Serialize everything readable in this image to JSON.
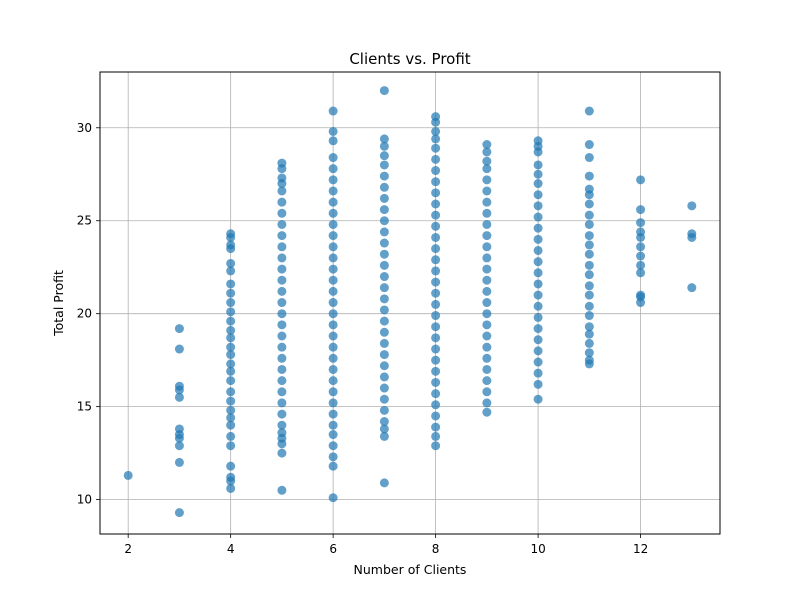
{
  "chart_data": {
    "type": "scatter",
    "title": "Clients vs. Profit",
    "xlabel": "Number of Clients",
    "ylabel": "Total Profit",
    "xlim": [
      1.45,
      13.55
    ],
    "ylim": [
      8.15,
      33.0
    ],
    "xticks": [
      2,
      4,
      6,
      8,
      10,
      12
    ],
    "yticks": [
      10,
      15,
      20,
      25,
      30
    ],
    "grid": true,
    "point_color": "#1f77b4",
    "point_alpha": 0.7,
    "series": [
      {
        "points": [
          [
            2,
            11.3
          ],
          [
            3,
            9.3
          ],
          [
            3,
            12.0
          ],
          [
            3,
            12.9
          ],
          [
            3,
            13.3
          ],
          [
            3,
            13.5
          ],
          [
            3,
            13.8
          ],
          [
            3,
            15.5
          ],
          [
            3,
            15.9
          ],
          [
            3,
            16.1
          ],
          [
            3,
            18.1
          ],
          [
            3,
            19.2
          ],
          [
            4,
            10.6
          ],
          [
            4,
            11.0
          ],
          [
            4,
            11.2
          ],
          [
            4,
            11.8
          ],
          [
            4,
            12.9
          ],
          [
            4,
            13.4
          ],
          [
            4,
            14.0
          ],
          [
            4,
            14.4
          ],
          [
            4,
            14.8
          ],
          [
            4,
            15.3
          ],
          [
            4,
            15.8
          ],
          [
            4,
            16.4
          ],
          [
            4,
            16.9
          ],
          [
            4,
            17.3
          ],
          [
            4,
            17.8
          ],
          [
            4,
            18.2
          ],
          [
            4,
            18.7
          ],
          [
            4,
            19.1
          ],
          [
            4,
            19.6
          ],
          [
            4,
            20.1
          ],
          [
            4,
            20.6
          ],
          [
            4,
            21.1
          ],
          [
            4,
            21.6
          ],
          [
            4,
            22.3
          ],
          [
            4,
            22.7
          ],
          [
            4,
            23.5
          ],
          [
            4,
            23.7
          ],
          [
            4,
            24.1
          ],
          [
            4,
            24.3
          ],
          [
            5,
            10.5
          ],
          [
            5,
            12.5
          ],
          [
            5,
            13.0
          ],
          [
            5,
            13.3
          ],
          [
            5,
            13.6
          ],
          [
            5,
            14.0
          ],
          [
            5,
            14.6
          ],
          [
            5,
            15.2
          ],
          [
            5,
            15.8
          ],
          [
            5,
            16.4
          ],
          [
            5,
            17.0
          ],
          [
            5,
            17.6
          ],
          [
            5,
            18.2
          ],
          [
            5,
            18.8
          ],
          [
            5,
            19.4
          ],
          [
            5,
            20.0
          ],
          [
            5,
            20.6
          ],
          [
            5,
            21.2
          ],
          [
            5,
            21.8
          ],
          [
            5,
            22.4
          ],
          [
            5,
            23.0
          ],
          [
            5,
            23.6
          ],
          [
            5,
            24.2
          ],
          [
            5,
            24.8
          ],
          [
            5,
            25.4
          ],
          [
            5,
            26.0
          ],
          [
            5,
            26.6
          ],
          [
            5,
            27.0
          ],
          [
            5,
            27.3
          ],
          [
            5,
            27.8
          ],
          [
            5,
            28.1
          ],
          [
            6,
            10.1
          ],
          [
            6,
            11.8
          ],
          [
            6,
            12.3
          ],
          [
            6,
            12.9
          ],
          [
            6,
            13.5
          ],
          [
            6,
            14.0
          ],
          [
            6,
            14.6
          ],
          [
            6,
            15.2
          ],
          [
            6,
            15.8
          ],
          [
            6,
            16.4
          ],
          [
            6,
            17.0
          ],
          [
            6,
            17.6
          ],
          [
            6,
            18.2
          ],
          [
            6,
            18.8
          ],
          [
            6,
            19.4
          ],
          [
            6,
            20.0
          ],
          [
            6,
            20.6
          ],
          [
            6,
            21.2
          ],
          [
            6,
            21.8
          ],
          [
            6,
            22.4
          ],
          [
            6,
            23.0
          ],
          [
            6,
            23.6
          ],
          [
            6,
            24.2
          ],
          [
            6,
            24.8
          ],
          [
            6,
            25.4
          ],
          [
            6,
            26.0
          ],
          [
            6,
            26.6
          ],
          [
            6,
            27.2
          ],
          [
            6,
            27.8
          ],
          [
            6,
            28.4
          ],
          [
            6,
            29.3
          ],
          [
            6,
            29.8
          ],
          [
            6,
            30.9
          ],
          [
            7,
            10.9
          ],
          [
            7,
            13.4
          ],
          [
            7,
            13.8
          ],
          [
            7,
            14.2
          ],
          [
            7,
            14.8
          ],
          [
            7,
            15.4
          ],
          [
            7,
            16.0
          ],
          [
            7,
            16.6
          ],
          [
            7,
            17.2
          ],
          [
            7,
            17.8
          ],
          [
            7,
            18.4
          ],
          [
            7,
            19.0
          ],
          [
            7,
            19.6
          ],
          [
            7,
            20.2
          ],
          [
            7,
            20.8
          ],
          [
            7,
            21.4
          ],
          [
            7,
            22.0
          ],
          [
            7,
            22.6
          ],
          [
            7,
            23.2
          ],
          [
            7,
            23.8
          ],
          [
            7,
            24.4
          ],
          [
            7,
            25.0
          ],
          [
            7,
            25.6
          ],
          [
            7,
            26.2
          ],
          [
            7,
            26.8
          ],
          [
            7,
            27.4
          ],
          [
            7,
            28.0
          ],
          [
            7,
            28.5
          ],
          [
            7,
            29.0
          ],
          [
            7,
            29.4
          ],
          [
            7,
            32.0
          ],
          [
            8,
            12.9
          ],
          [
            8,
            13.4
          ],
          [
            8,
            13.9
          ],
          [
            8,
            14.5
          ],
          [
            8,
            15.1
          ],
          [
            8,
            15.7
          ],
          [
            8,
            16.3
          ],
          [
            8,
            16.9
          ],
          [
            8,
            17.5
          ],
          [
            8,
            18.1
          ],
          [
            8,
            18.7
          ],
          [
            8,
            19.3
          ],
          [
            8,
            19.9
          ],
          [
            8,
            20.5
          ],
          [
            8,
            21.1
          ],
          [
            8,
            21.7
          ],
          [
            8,
            22.3
          ],
          [
            8,
            22.9
          ],
          [
            8,
            23.5
          ],
          [
            8,
            24.1
          ],
          [
            8,
            24.7
          ],
          [
            8,
            25.3
          ],
          [
            8,
            25.9
          ],
          [
            8,
            26.5
          ],
          [
            8,
            27.1
          ],
          [
            8,
            27.7
          ],
          [
            8,
            28.3
          ],
          [
            8,
            28.9
          ],
          [
            8,
            29.4
          ],
          [
            8,
            29.8
          ],
          [
            8,
            30.3
          ],
          [
            8,
            30.6
          ],
          [
            9,
            14.7
          ],
          [
            9,
            15.2
          ],
          [
            9,
            15.8
          ],
          [
            9,
            16.4
          ],
          [
            9,
            17.0
          ],
          [
            9,
            17.6
          ],
          [
            9,
            18.2
          ],
          [
            9,
            18.8
          ],
          [
            9,
            19.4
          ],
          [
            9,
            20.0
          ],
          [
            9,
            20.6
          ],
          [
            9,
            21.2
          ],
          [
            9,
            21.8
          ],
          [
            9,
            22.4
          ],
          [
            9,
            23.0
          ],
          [
            9,
            23.6
          ],
          [
            9,
            24.2
          ],
          [
            9,
            24.8
          ],
          [
            9,
            25.4
          ],
          [
            9,
            26.0
          ],
          [
            9,
            26.6
          ],
          [
            9,
            27.2
          ],
          [
            9,
            27.8
          ],
          [
            9,
            28.2
          ],
          [
            9,
            28.7
          ],
          [
            9,
            29.1
          ],
          [
            10,
            15.4
          ],
          [
            10,
            16.2
          ],
          [
            10,
            16.8
          ],
          [
            10,
            17.4
          ],
          [
            10,
            18.0
          ],
          [
            10,
            18.6
          ],
          [
            10,
            19.2
          ],
          [
            10,
            19.8
          ],
          [
            10,
            20.4
          ],
          [
            10,
            21.0
          ],
          [
            10,
            21.6
          ],
          [
            10,
            22.2
          ],
          [
            10,
            22.8
          ],
          [
            10,
            23.4
          ],
          [
            10,
            24.0
          ],
          [
            10,
            24.6
          ],
          [
            10,
            25.2
          ],
          [
            10,
            25.8
          ],
          [
            10,
            26.4
          ],
          [
            10,
            27.0
          ],
          [
            10,
            27.5
          ],
          [
            10,
            28.0
          ],
          [
            10,
            28.7
          ],
          [
            10,
            29.0
          ],
          [
            10,
            29.3
          ],
          [
            11,
            17.3
          ],
          [
            11,
            17.5
          ],
          [
            11,
            17.9
          ],
          [
            11,
            18.4
          ],
          [
            11,
            18.9
          ],
          [
            11,
            19.3
          ],
          [
            11,
            19.9
          ],
          [
            11,
            20.4
          ],
          [
            11,
            21.0
          ],
          [
            11,
            21.5
          ],
          [
            11,
            22.1
          ],
          [
            11,
            22.6
          ],
          [
            11,
            23.2
          ],
          [
            11,
            23.7
          ],
          [
            11,
            24.2
          ],
          [
            11,
            24.8
          ],
          [
            11,
            25.3
          ],
          [
            11,
            25.9
          ],
          [
            11,
            26.4
          ],
          [
            11,
            26.7
          ],
          [
            11,
            27.4
          ],
          [
            11,
            28.4
          ],
          [
            11,
            29.1
          ],
          [
            11,
            30.9
          ],
          [
            12,
            20.6
          ],
          [
            12,
            20.9
          ],
          [
            12,
            21.0
          ],
          [
            12,
            22.2
          ],
          [
            12,
            22.6
          ],
          [
            12,
            23.1
          ],
          [
            12,
            23.6
          ],
          [
            12,
            24.1
          ],
          [
            12,
            24.4
          ],
          [
            12,
            24.9
          ],
          [
            12,
            25.6
          ],
          [
            12,
            27.2
          ],
          [
            13,
            21.4
          ],
          [
            13,
            24.1
          ],
          [
            13,
            24.3
          ],
          [
            13,
            25.8
          ]
        ]
      }
    ]
  }
}
